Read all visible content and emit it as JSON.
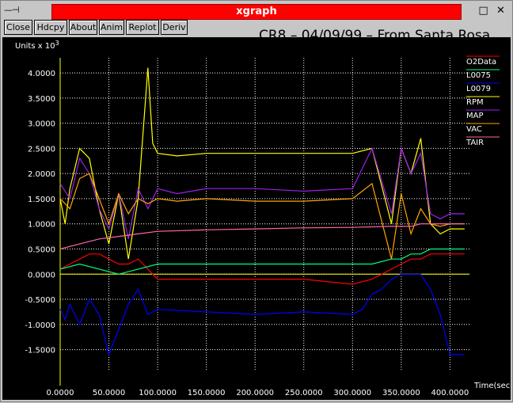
{
  "window": {
    "title": "xgraph",
    "left_decor": "—⊣",
    "minimize_glyph": "□",
    "close_glyph": "✕"
  },
  "toolbar": {
    "buttons": [
      "Close",
      "Hdcpy",
      "About",
      "Anim",
      "Replot",
      "Deriv"
    ]
  },
  "colors": {
    "background": "#000000",
    "grid": "#ffffff",
    "text": "#ffffff",
    "title_bar": "#ff0000",
    "chrome": "#c6c6c6"
  },
  "chart_data": {
    "type": "line",
    "title": "CR8 – 04/09/99 – From Santa Rosa",
    "ylabel": "Units x 10",
    "ylabel_exponent": "3",
    "xlabel": "Time(sec)",
    "xlim": [
      0,
      420
    ],
    "ylim": [
      -1.9,
      4.3
    ],
    "xticks": [
      0,
      50,
      100,
      150,
      200,
      250,
      300,
      350,
      400
    ],
    "xtick_labels": [
      "0.0000",
      "50.0000",
      "100.0000",
      "150.0000",
      "200.0000",
      "250.0000",
      "300.0000",
      "350.0000",
      "400.0000"
    ],
    "yticks": [
      -1.5,
      -1.0,
      -0.5,
      0.0,
      0.5,
      1.0,
      1.5,
      2.0,
      2.5,
      3.0,
      3.5,
      4.0
    ],
    "ytick_labels": [
      "-1.5000",
      "-1.0000",
      "-0.5000",
      "0.0000",
      "0.5000",
      "1.0000",
      "1.5000",
      "2.0000",
      "2.5000",
      "3.0000",
      "3.5000",
      "4.0000"
    ],
    "grid": true,
    "legend_position": "right",
    "series": [
      {
        "name": "O2Data",
        "color": "#ff0000",
        "x": [
          0,
          10,
          20,
          30,
          40,
          50,
          60,
          70,
          80,
          90,
          100,
          150,
          200,
          250,
          300,
          320,
          330,
          340,
          350,
          360,
          370,
          380,
          390,
          400,
          415
        ],
        "y": [
          0.1,
          0.2,
          0.3,
          0.4,
          0.4,
          0.3,
          0.2,
          0.2,
          0.3,
          0.1,
          -0.1,
          -0.1,
          -0.1,
          -0.1,
          -0.2,
          -0.1,
          0.0,
          0.1,
          0.2,
          0.3,
          0.3,
          0.4,
          0.4,
          0.4,
          0.4
        ]
      },
      {
        "name": "L0075",
        "color": "#00ff80",
        "x": [
          0,
          20,
          40,
          60,
          80,
          100,
          150,
          200,
          250,
          300,
          320,
          340,
          350,
          360,
          370,
          380,
          390,
          400,
          415
        ],
        "y": [
          0.1,
          0.2,
          0.1,
          0.0,
          0.1,
          0.2,
          0.2,
          0.2,
          0.2,
          0.2,
          0.2,
          0.3,
          0.3,
          0.4,
          0.4,
          0.5,
          0.5,
          0.5,
          0.5
        ]
      },
      {
        "name": "L0079",
        "color": "#0000ff",
        "x": [
          0,
          5,
          10,
          20,
          30,
          40,
          50,
          60,
          70,
          80,
          90,
          100,
          150,
          200,
          250,
          300,
          310,
          320,
          330,
          340,
          350,
          360,
          370,
          380,
          390,
          400,
          415
        ],
        "y": [
          -0.7,
          -0.9,
          -0.6,
          -1.0,
          -0.5,
          -0.8,
          -1.6,
          -1.1,
          -0.6,
          -0.3,
          -0.8,
          -0.7,
          -0.75,
          -0.8,
          -0.75,
          -0.8,
          -0.7,
          -0.4,
          -0.3,
          -0.1,
          0.0,
          0.0,
          0.0,
          -0.3,
          -0.8,
          -1.6,
          -1.6
        ]
      },
      {
        "name": "RPM",
        "color": "#ffff00",
        "x": [
          0,
          5,
          10,
          20,
          30,
          40,
          50,
          60,
          70,
          80,
          90,
          95,
          100,
          120,
          150,
          200,
          250,
          300,
          320,
          340,
          350,
          360,
          370,
          380,
          390,
          400,
          415
        ],
        "y": [
          1.5,
          1.0,
          1.7,
          2.5,
          2.3,
          1.3,
          0.6,
          1.6,
          0.3,
          1.5,
          4.1,
          2.6,
          2.4,
          2.35,
          2.4,
          2.4,
          2.4,
          2.4,
          2.5,
          1.0,
          2.5,
          2.0,
          2.7,
          1.0,
          0.8,
          0.9,
          0.9
        ]
      },
      {
        "name": "MAP",
        "color": "#a020f0",
        "x": [
          0,
          10,
          20,
          30,
          40,
          50,
          60,
          70,
          80,
          90,
          100,
          120,
          150,
          200,
          250,
          300,
          320,
          340,
          350,
          360,
          370,
          380,
          390,
          400,
          415
        ],
        "y": [
          1.8,
          1.5,
          2.3,
          2.0,
          1.3,
          0.9,
          1.6,
          0.7,
          1.7,
          1.3,
          1.7,
          1.6,
          1.7,
          1.7,
          1.65,
          1.7,
          2.5,
          1.2,
          2.5,
          2.0,
          2.4,
          1.2,
          1.1,
          1.2,
          1.2
        ]
      },
      {
        "name": "VAC",
        "color": "#ffa500",
        "x": [
          0,
          10,
          20,
          30,
          40,
          50,
          60,
          70,
          80,
          90,
          100,
          120,
          150,
          200,
          250,
          300,
          320,
          340,
          350,
          360,
          370,
          380,
          390,
          400,
          415
        ],
        "y": [
          1.5,
          1.3,
          1.9,
          2.0,
          1.5,
          1.0,
          1.6,
          1.2,
          1.5,
          1.4,
          1.5,
          1.45,
          1.5,
          1.45,
          1.45,
          1.5,
          1.8,
          0.3,
          1.6,
          0.8,
          1.3,
          1.0,
          0.95,
          1.0,
          1.0
        ]
      },
      {
        "name": "TAIR",
        "color": "#ff66aa",
        "x": [
          0,
          20,
          40,
          60,
          80,
          100,
          150,
          200,
          250,
          300,
          340,
          350,
          360,
          370,
          380,
          400,
          415
        ],
        "y": [
          0.5,
          0.6,
          0.7,
          0.75,
          0.8,
          0.85,
          0.88,
          0.9,
          0.92,
          0.93,
          0.95,
          0.95,
          0.95,
          1.0,
          1.0,
          1.0,
          1.0
        ]
      }
    ]
  }
}
